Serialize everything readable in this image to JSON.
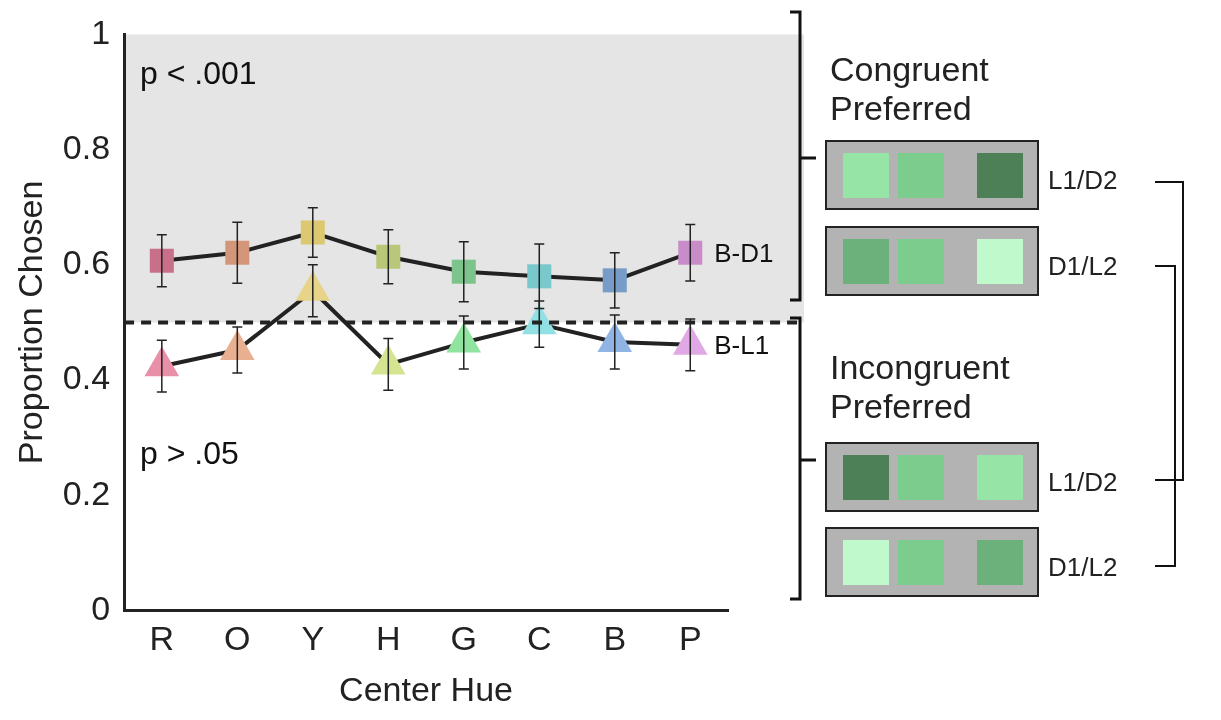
{
  "chart_data": {
    "type": "line",
    "xlabel": "Center Hue",
    "ylabel": "Proportion Chosen",
    "categories": [
      "R",
      "O",
      "Y",
      "H",
      "G",
      "C",
      "B",
      "P"
    ],
    "series": [
      {
        "name": "B-D1",
        "color": "#222222",
        "marker": "square",
        "colors": [
          "#c8708a",
          "#d4967a",
          "#dcc870",
          "#b8c878",
          "#7cc48c",
          "#78c8cc",
          "#789cc8",
          "#c88cc8"
        ],
        "values": [
          0.607,
          0.621,
          0.656,
          0.614,
          0.588,
          0.58,
          0.573,
          0.621
        ],
        "errors": [
          0.045,
          0.053,
          0.043,
          0.047,
          0.052,
          0.056,
          0.048,
          0.049
        ]
      },
      {
        "name": "B-L1",
        "color": "#222222",
        "marker": "triangle",
        "colors": [
          "#e890a8",
          "#e8b090",
          "#e8d488",
          "#d4e490",
          "#90e4a0",
          "#90e0e4",
          "#90b4e4",
          "#e0a8e4"
        ],
        "values": [
          0.424,
          0.452,
          0.555,
          0.427,
          0.465,
          0.497,
          0.466,
          0.461
        ],
        "errors": [
          0.045,
          0.04,
          0.045,
          0.045,
          0.046,
          0.04,
          0.047,
          0.045
        ]
      }
    ],
    "ylim": [
      0,
      1
    ],
    "yticks": [
      0,
      0.2,
      0.4,
      0.6,
      0.8,
      1
    ],
    "grid": false,
    "legend": false,
    "line_style": "solid",
    "ref_lines": [
      {
        "axis": "y",
        "value": 0.5,
        "color": "#222222",
        "line_style": "dashed"
      }
    ],
    "bands": [
      {
        "axis": "y",
        "from": 0.5,
        "to": 1,
        "color": "#e5e5e5"
      }
    ],
    "annotations": [
      "p < .001",
      "p > .05",
      "Congruent Preferred",
      "L1/D2",
      "D1/L2",
      "Incongruent Preferred",
      "L1/D2",
      "D1/L2"
    ]
  }
}
